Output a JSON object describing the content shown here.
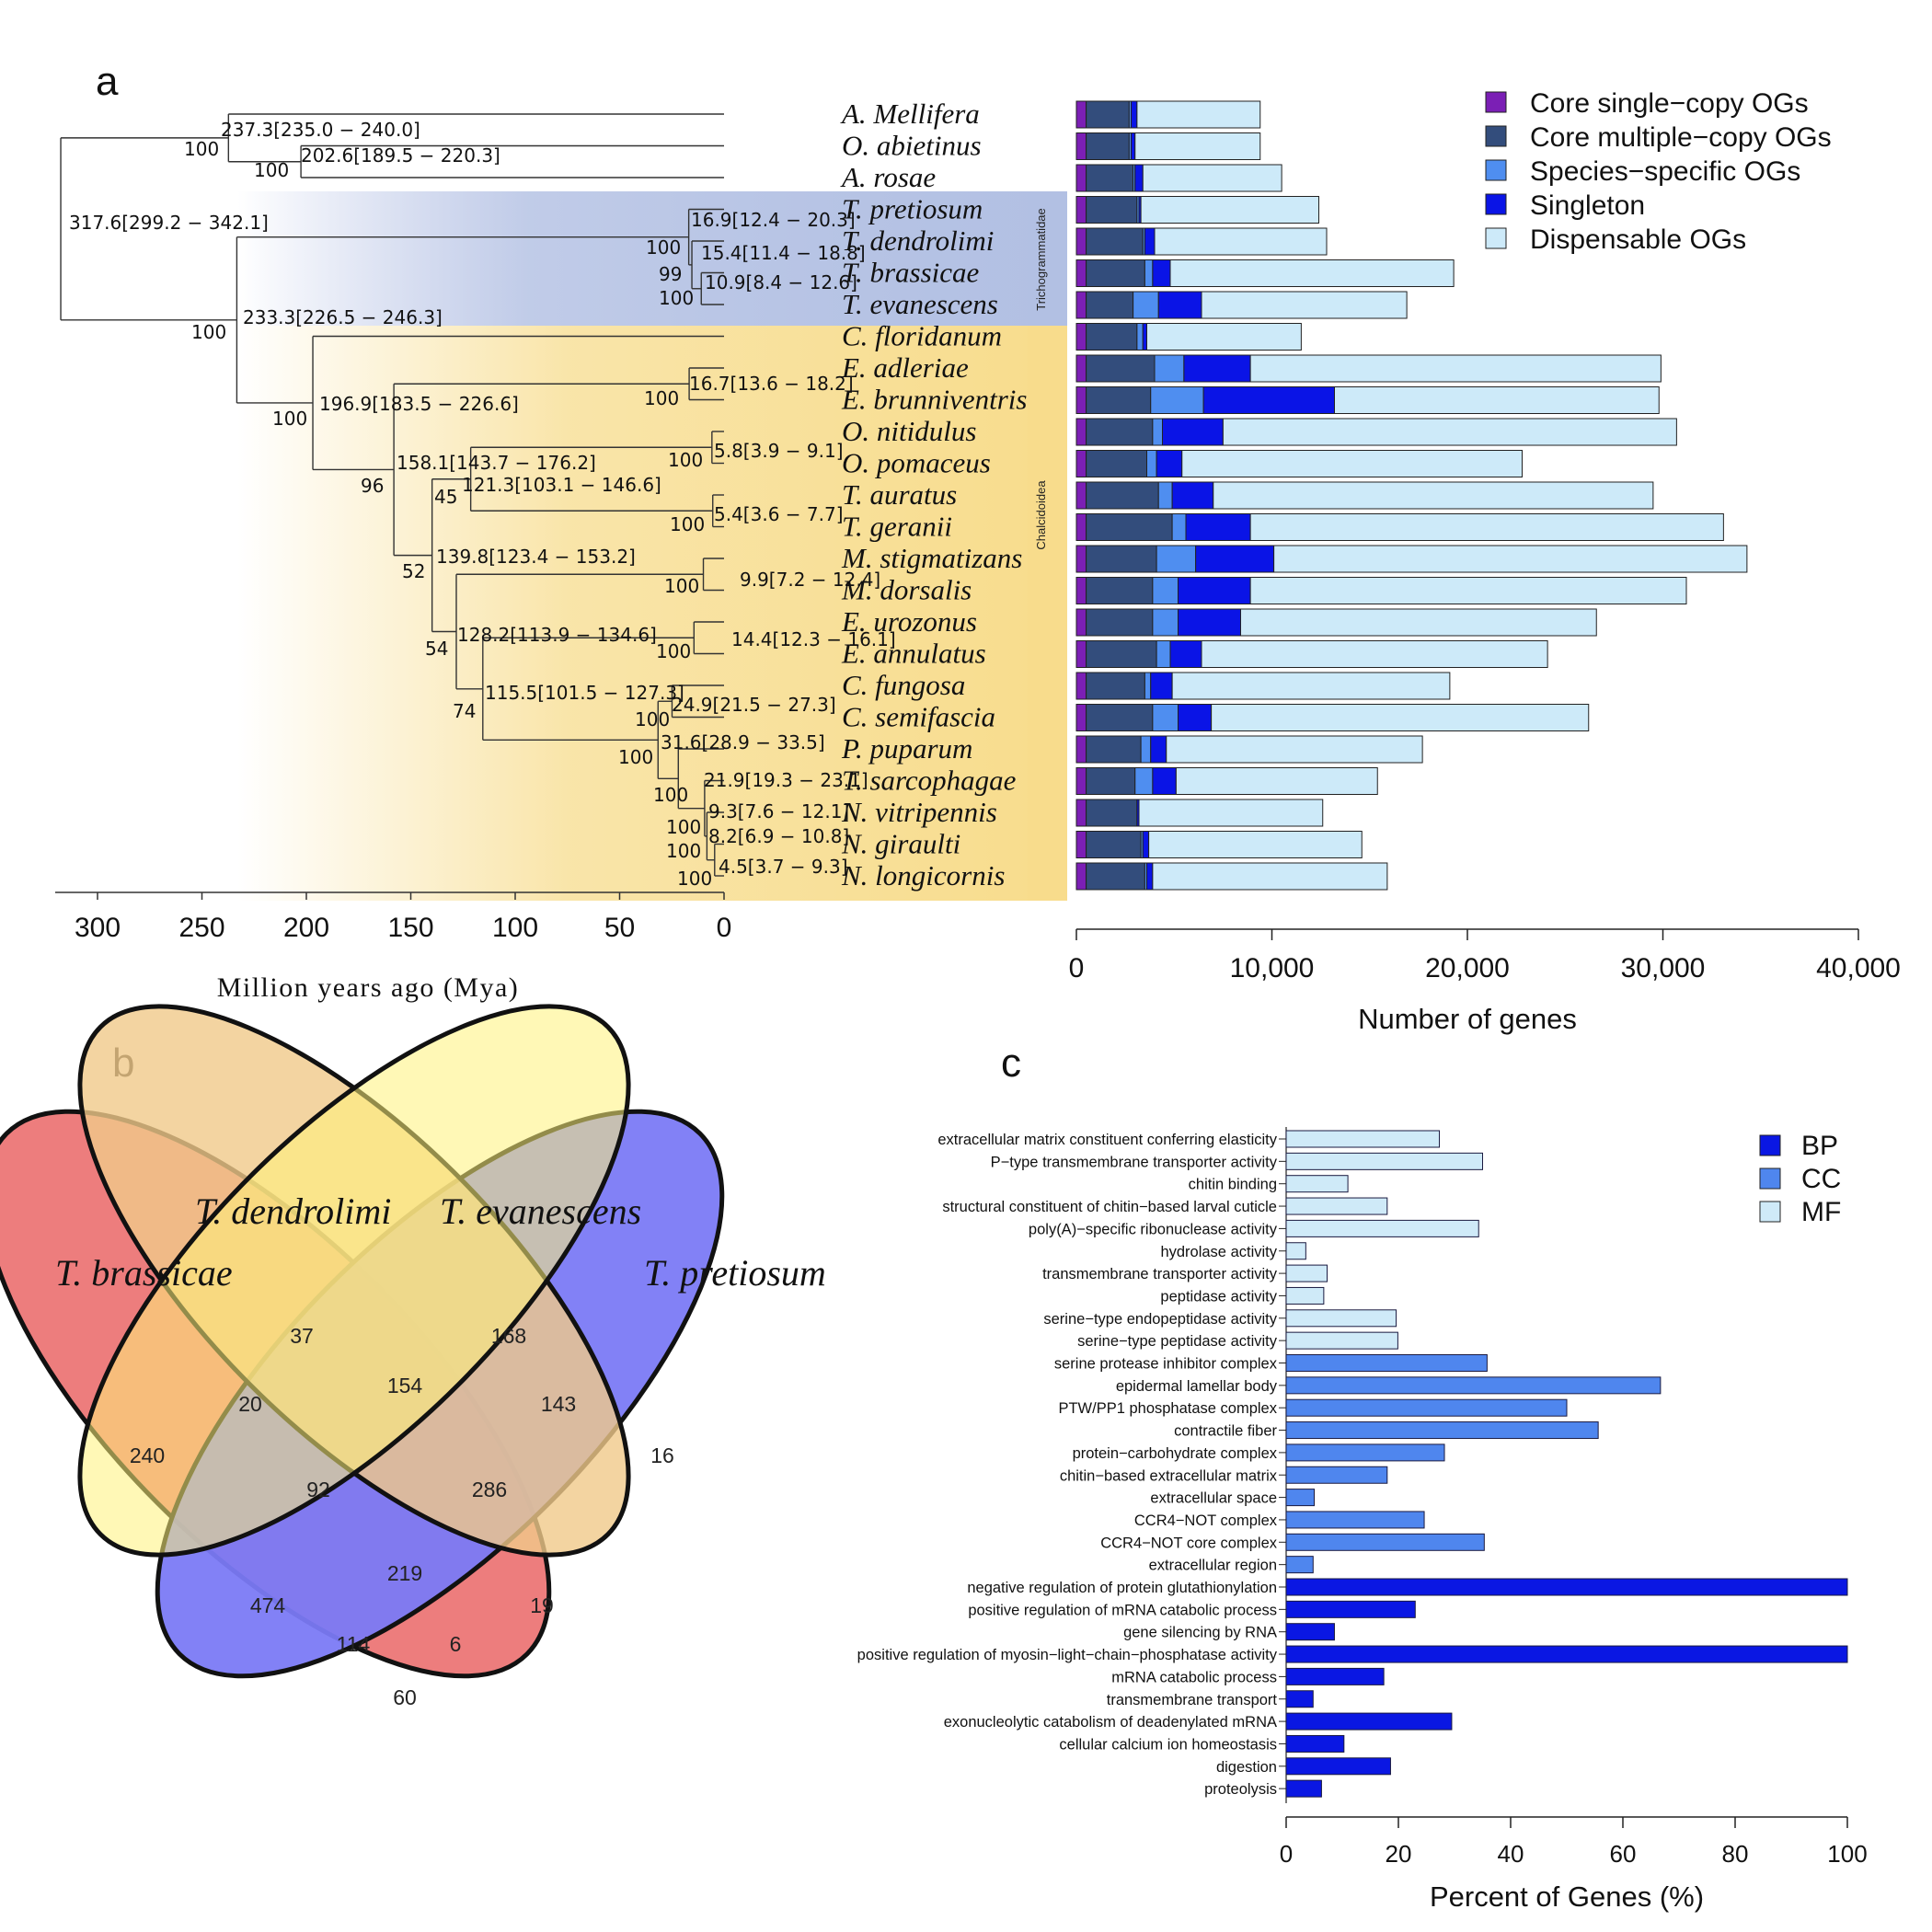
{
  "panels": {
    "a": "a",
    "b": "b",
    "c": "c"
  },
  "colors": {
    "core_single": "#7b1fb5",
    "core_multi": "#334d7c",
    "species_specific": "#4f8ef0",
    "singleton": "#0a14e6",
    "dispensable": "#cdeaf9",
    "BP": "#0a17e3",
    "CC": "#4f86ee",
    "MF": "#cfeaf8"
  },
  "tree": {
    "axis_label": "Million years ago (Mya)",
    "axis_ticks": [
      "300",
      "250",
      "200",
      "150",
      "100",
      "50",
      "0"
    ],
    "clade_labels": {
      "trichogrammatidae": "Trichogrammatidae",
      "chalcidoidea": "Chalcidoidea"
    },
    "node_labels": [
      "237.3[235.0 − 240.0]",
      "100",
      "202.6[189.5 − 220.3]",
      "100",
      "317.6[299.2 − 342.1]",
      "16.9[12.4 − 20.3]",
      "100",
      "15.4[11.4 − 18.8]",
      "99",
      "10.9[8.4 − 12.6]",
      "100",
      "233.3[226.5 − 246.3]",
      "100",
      "16.7[13.6 − 18.2]",
      "100",
      "196.9[183.5 − 226.6]",
      "100",
      "158.1[143.7 − 176.2]",
      "5.8[3.9 − 9.1]",
      "100",
      "96",
      "45",
      "121.3[103.1 − 146.6]",
      "5.4[3.6 − 7.7]",
      "100",
      "139.8[123.4 − 153.2]",
      "52",
      "9.9[7.2 − 12.4]",
      "100",
      "128.2[113.9 − 134.6]",
      "54",
      "14.4[12.3 − 16.1]",
      "100",
      "115.5[101.5 − 127.3]",
      "74",
      "24.9[21.5 − 27.3]",
      "100",
      "31.6[28.9 − 33.5]",
      "100",
      "21.9[19.3 − 23.1]",
      "100",
      "9.3[7.6 − 12.1]",
      "100",
      "8.2[6.9 − 10.8]",
      "100",
      "4.5[3.7 − 9.3]",
      "100"
    ]
  },
  "chart_data": [
    {
      "type": "bar",
      "orientation": "horizontal",
      "stacked": true,
      "xlabel": "Number of genes",
      "xlim": [
        0,
        40000
      ],
      "xticks": [
        "0",
        "10,000",
        "20,000",
        "30,000",
        "40,000"
      ],
      "legend_position": "top-right",
      "categories": [
        "A. Mellifera",
        "O. abietinus",
        "A. rosae",
        "T. pretiosum",
        "T. dendrolimi",
        "T. brassicae",
        "T. evanescens",
        "C. floridanum",
        "E. adleriae",
        "E. brunniventris",
        "O. nitidulus",
        "O. pomaceus",
        "T. auratus",
        "T. geranii",
        "M. stigmatizans",
        "M. dorsalis",
        "E. urozonus",
        "E. annulatus",
        "C. fungosa",
        "C. semifascia",
        "P. puparum",
        "T. sarcophagae",
        "N. vitripennis",
        "N. giraulti",
        "N. longicornis"
      ],
      "series": [
        {
          "name": "Core single−copy OGs",
          "values": [
            500,
            500,
            500,
            500,
            500,
            500,
            500,
            500,
            500,
            500,
            500,
            500,
            500,
            500,
            500,
            500,
            500,
            500,
            500,
            500,
            500,
            500,
            500,
            500,
            500
          ]
        },
        {
          "name": "Core multiple−copy OGs",
          "values": [
            2200,
            2200,
            2400,
            2600,
            2900,
            3000,
            2400,
            2600,
            3500,
            3300,
            3400,
            3100,
            3700,
            4400,
            3600,
            3400,
            3400,
            3600,
            3000,
            3400,
            2800,
            2500,
            2600,
            2800,
            3000
          ]
        },
        {
          "name": "Species−specific OGs",
          "values": [
            100,
            100,
            100,
            100,
            100,
            400,
            1300,
            300,
            1500,
            2700,
            500,
            500,
            700,
            700,
            2000,
            1300,
            1300,
            700,
            300,
            1300,
            500,
            900,
            0,
            100,
            100
          ]
        },
        {
          "name": "Singleton",
          "values": [
            300,
            200,
            400,
            100,
            500,
            900,
            2200,
            200,
            3400,
            6700,
            3100,
            1300,
            2100,
            3300,
            4000,
            3700,
            3200,
            1600,
            1100,
            1700,
            800,
            1200,
            100,
            300,
            300
          ]
        },
        {
          "name": "Dispensable OGs",
          "values": [
            6300,
            6400,
            7100,
            9100,
            8800,
            14500,
            10500,
            7900,
            21000,
            16600,
            23200,
            17400,
            22500,
            24200,
            24200,
            22300,
            18200,
            17700,
            14200,
            19300,
            13100,
            10300,
            9400,
            10900,
            12000
          ]
        }
      ]
    },
    {
      "type": "bar",
      "orientation": "horizontal",
      "xlabel": "Percent of Genes (%)",
      "xlim": [
        0,
        100
      ],
      "xticks": [
        "0",
        "20",
        "40",
        "60",
        "80",
        "100"
      ],
      "legend_position": "top-right",
      "categories": [
        "extracellular matrix constituent conferring elasticity",
        "P−type transmembrane transporter activity",
        "chitin binding",
        "structural constituent of chitin−based larval cuticle",
        "poly(A)−specific ribonuclease activity",
        "hydrolase activity",
        "transmembrane transporter activity",
        "peptidase activity",
        "serine−type endopeptidase activity",
        "serine−type peptidase activity",
        "serine protease inhibitor complex",
        "epidermal lamellar body",
        "PTW/PP1 phosphatase complex",
        "contractile fiber",
        "protein−carbohydrate complex",
        "chitin−based extracellular matrix",
        "extracellular space",
        "CCR4−NOT complex",
        "CCR4−NOT core complex",
        "extracellular region",
        "negative regulation of protein glutathionylation",
        "positive regulation of mRNA catabolic process",
        "gene silencing by RNA",
        "positive regulation of myosin−light−chain−phosphatase activity",
        "mRNA catabolic process",
        "transmembrane transport",
        "exonucleolytic catabolism of deadenylated mRNA",
        "cellular calcium ion homeostasis",
        "digestion",
        "proteolysis"
      ],
      "groups": [
        "MF",
        "MF",
        "MF",
        "MF",
        "MF",
        "MF",
        "MF",
        "MF",
        "MF",
        "MF",
        "CC",
        "CC",
        "CC",
        "CC",
        "CC",
        "CC",
        "CC",
        "CC",
        "CC",
        "CC",
        "BP",
        "BP",
        "BP",
        "BP",
        "BP",
        "BP",
        "BP",
        "BP",
        "BP",
        "BP"
      ],
      "values": [
        27.3,
        35,
        11,
        18,
        34.3,
        3.5,
        7.3,
        6.7,
        19.6,
        19.9,
        35.8,
        66.7,
        50,
        55.6,
        28.2,
        18,
        5,
        24.6,
        35.3,
        4.8,
        100,
        23,
        8.6,
        100,
        17.4,
        4.8,
        29.5,
        10.3,
        18.6,
        6.3
      ],
      "legend": [
        "BP",
        "CC",
        "MF"
      ]
    }
  ],
  "venn": {
    "sets": [
      "T. brassicae",
      "T. dendrolimi",
      "T. evanescens",
      "T. pretiosum"
    ],
    "counts": {
      "brassicae_only": "240",
      "dendrolimi_only": "37",
      "evanescens_only": "168",
      "pretiosum_only": "16",
      "bra_den": "20",
      "den_eva": "154",
      "eva_pre": "143",
      "bra_den_eva": "92",
      "den_eva_pre": "286",
      "all": "219",
      "bra_eva": "474",
      "eva_pre_bra_x": "114",
      "den_pre": "6",
      "bra_pre_only": "60",
      "bra_den_pre": "19"
    }
  }
}
